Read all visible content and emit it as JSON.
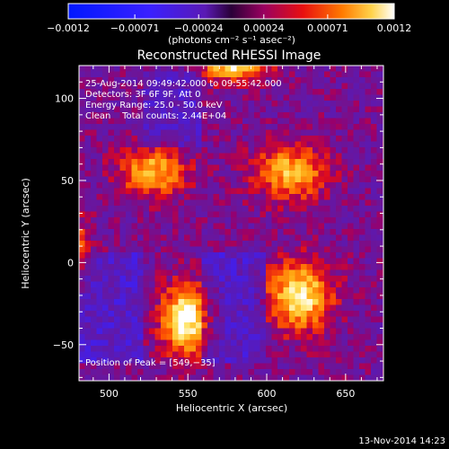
{
  "chart_data": {
    "type": "heatmap",
    "title": "Reconstructed RHESSI Image",
    "xlabel": "Heliocentric X (arcsec)",
    "ylabel": "Heliocentric Y (arcsec)",
    "xlim": [
      481,
      674
    ],
    "ylim": [
      -72,
      120
    ],
    "x_ticks": [
      500,
      550,
      600,
      650
    ],
    "y_ticks": [
      -50,
      0,
      50,
      100
    ],
    "x_tick_labels": [
      "500",
      "550",
      "600",
      "650"
    ],
    "y_tick_labels": [
      "−50",
      "0",
      "50",
      "100"
    ],
    "colorbar": {
      "range": [
        -0.0012,
        0.0012
      ],
      "tick_labels": [
        "−0.0012",
        "−0.00071",
        "−0.00024",
        "0.00024",
        "0.00071",
        "0.0012"
      ],
      "units": "(photons cm⁻² s⁻¹ asec⁻²)"
    },
    "sources": [
      {
        "x": 549,
        "y": -35,
        "peak": 1.0,
        "sx": 11,
        "sy": 15
      },
      {
        "x": 621,
        "y": -20,
        "peak": 0.88,
        "sx": 14,
        "sy": 15
      },
      {
        "x": 528,
        "y": 55,
        "peak": 0.72,
        "sx": 15,
        "sy": 10
      },
      {
        "x": 615,
        "y": 55,
        "peak": 0.7,
        "sx": 16,
        "sy": 12
      },
      {
        "x": 580,
        "y": 122,
        "peak": 0.95,
        "sx": 14,
        "sy": 8
      },
      {
        "x": 475,
        "y": 5,
        "peak": 0.7,
        "sx": 8,
        "sy": 16
      }
    ],
    "annotations": [
      "25-Aug-2014 09:49:42.000 to 09:55:42.000",
      "Detectors: 3F 6F 9F, Att 0",
      "Energy Range: 25.0 - 50.0 keV",
      "Clean    Total counts: 2.44E+04"
    ],
    "peak_label": "Position of Peak = [549,−35]",
    "timestamp": "13-Nov-2014 14:23"
  }
}
